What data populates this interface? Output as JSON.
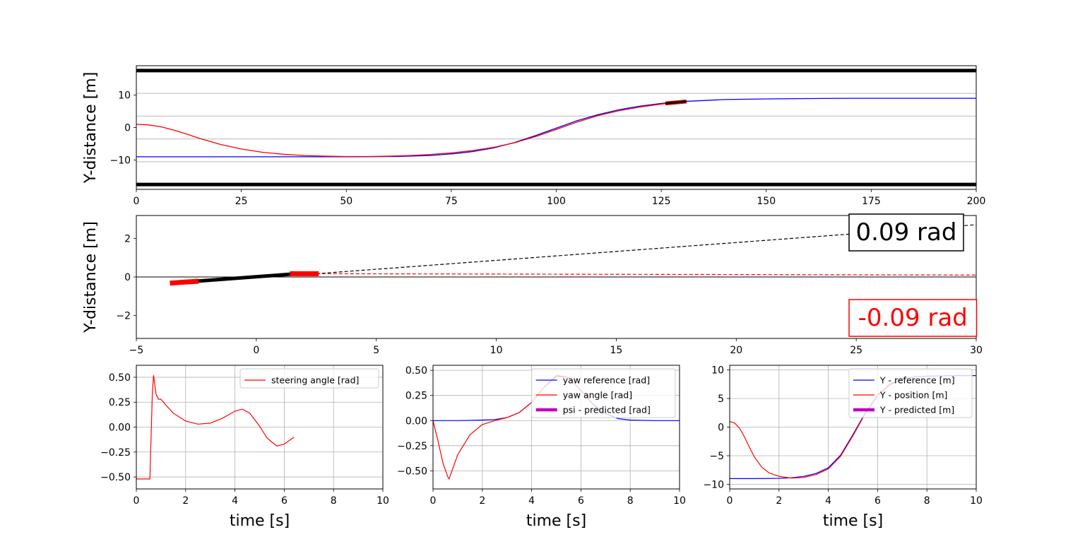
{
  "chart_data": [
    {
      "id": "road",
      "type": "line",
      "ylabel": "Y-distance [m]",
      "xlabel": "",
      "xlim": [
        0,
        200
      ],
      "ylim": [
        -19,
        19
      ],
      "xticks": [
        0,
        25,
        50,
        75,
        100,
        125,
        150,
        175,
        200
      ],
      "yticks": [
        -10,
        0,
        10
      ],
      "lane_lines": [
        {
          "y": 17.5,
          "style": "thick",
          "color": "#000000"
        },
        {
          "y": 10.5,
          "style": "thin",
          "color": "#c8c8c8"
        },
        {
          "y": 3.5,
          "style": "thin",
          "color": "#c8c8c8"
        },
        {
          "y": -3.5,
          "style": "thin",
          "color": "#c8c8c8"
        },
        {
          "y": -10.5,
          "style": "thin",
          "color": "#c8c8c8"
        },
        {
          "y": -17.5,
          "style": "thick",
          "color": "#000000"
        }
      ],
      "series": [
        {
          "color": "#0000ff",
          "x": [
            0,
            25,
            50,
            62,
            70,
            76,
            80,
            85,
            90,
            95,
            100,
            105,
            110,
            115,
            120,
            125,
            130,
            140,
            150,
            160,
            170,
            200
          ],
          "y": [
            -9,
            -9,
            -9,
            -8.9,
            -8.6,
            -8.0,
            -7.4,
            -6.3,
            -4.6,
            -2.5,
            -0.2,
            2.1,
            4.0,
            5.5,
            6.6,
            7.4,
            8.0,
            8.6,
            8.8,
            8.9,
            9,
            9
          ]
        },
        {
          "color": "#ff0000",
          "x": [
            0,
            3,
            6,
            9,
            12,
            15,
            20,
            25,
            30,
            35,
            40,
            45,
            50,
            55,
            60,
            65,
            70,
            75,
            80,
            85,
            90,
            95,
            100,
            105,
            110,
            115,
            120,
            125,
            130
          ],
          "y": [
            1,
            0.8,
            0.2,
            -0.8,
            -2.0,
            -3.3,
            -5.2,
            -6.6,
            -7.6,
            -8.2,
            -8.6,
            -8.8,
            -8.9,
            -8.9,
            -8.8,
            -8.6,
            -8.3,
            -7.8,
            -7.1,
            -6.1,
            -4.7,
            -2.8,
            -0.6,
            1.7,
            3.7,
            5.2,
            6.3,
            7.2,
            7.9
          ]
        }
      ],
      "vehicle": {
        "x": [
          126,
          131
        ],
        "y": [
          7.4,
          8.0
        ],
        "color": "#000000",
        "edge": "#ff0000"
      }
    },
    {
      "id": "zoom",
      "type": "line",
      "ylabel": "Y-distance [m]",
      "xlabel": "",
      "xlim": [
        -5,
        30
      ],
      "ylim": [
        -3.2,
        3.2
      ],
      "xticks": [
        -5,
        0,
        5,
        10,
        15,
        20,
        25,
        30
      ],
      "yticks": [
        -2,
        0,
        2
      ],
      "zero_line": true,
      "body": {
        "x": [
          -2.5,
          1.5
        ],
        "y": [
          -0.22,
          0.15
        ],
        "color": "#000000"
      },
      "rear_wheel": {
        "x": [
          -3.6,
          -2.4
        ],
        "y": [
          -0.32,
          -0.22
        ],
        "color": "#ff0000"
      },
      "front_wheel": {
        "x": [
          1.4,
          2.6
        ],
        "y": [
          0.17,
          0.17
        ],
        "color": "#ff0000"
      },
      "heading_line": {
        "x": [
          2.5,
          30
        ],
        "y": [
          0.17,
          2.72
        ],
        "color": "#000000",
        "dashed": true
      },
      "steer_line": {
        "x": [
          2.5,
          30
        ],
        "y": [
          0.17,
          0.1
        ],
        "color": "#ff0000",
        "dashed": true
      },
      "annotations": [
        {
          "text": "0.09 rad",
          "color": "#000000",
          "pos": "top-right"
        },
        {
          "text": "-0.09 rad",
          "color": "#ff0000",
          "pos": "bottom-right"
        }
      ]
    },
    {
      "id": "steer",
      "type": "line",
      "xlabel": "time [s]",
      "ylabel": "",
      "xlim": [
        0,
        10
      ],
      "ylim": [
        -0.62,
        0.62
      ],
      "xticks": [
        0,
        2,
        4,
        6,
        8,
        10
      ],
      "yticks": [
        -0.5,
        -0.25,
        0.0,
        0.25,
        0.5
      ],
      "ytick_labels": [
        "−0.50",
        "−0.25",
        "0.00",
        "0.25",
        "0.50"
      ],
      "grid": true,
      "legend": "top-right",
      "series": [
        {
          "name": "steering angle [rad]",
          "color": "#ff0000",
          "width": 1.2,
          "x": [
            0,
            0.55,
            0.6,
            0.65,
            0.7,
            0.8,
            0.9,
            1.0,
            1.2,
            1.5,
            2.0,
            2.5,
            3.0,
            3.5,
            4.0,
            4.3,
            4.6,
            5.0,
            5.3,
            5.7,
            6.0,
            6.4
          ],
          "y": [
            -0.52,
            -0.52,
            -0.1,
            0.35,
            0.52,
            0.33,
            0.28,
            0.28,
            0.22,
            0.14,
            0.06,
            0.03,
            0.04,
            0.09,
            0.16,
            0.18,
            0.14,
            0.01,
            -0.11,
            -0.19,
            -0.17,
            -0.1
          ]
        }
      ]
    },
    {
      "id": "yaw",
      "type": "line",
      "xlabel": "time [s]",
      "ylabel": "",
      "xlim": [
        0,
        10
      ],
      "ylim": [
        -0.68,
        0.55
      ],
      "xticks": [
        0,
        2,
        4,
        6,
        8,
        10
      ],
      "yticks": [
        -0.5,
        -0.25,
        0.0,
        0.25,
        0.5
      ],
      "ytick_labels": [
        "−0.50",
        "−0.25",
        "0.00",
        "0.25",
        "0.50"
      ],
      "grid": true,
      "legend": "top-right",
      "series": [
        {
          "name": "yaw reference [rad]",
          "color": "#0000ff",
          "width": 1.2,
          "x": [
            0,
            1,
            2,
            2.5,
            3,
            3.5,
            4,
            4.5,
            5,
            5.5,
            6,
            6.5,
            7,
            7.5,
            8,
            9,
            10
          ],
          "y": [
            0,
            0,
            0.005,
            0.01,
            0.03,
            0.08,
            0.18,
            0.33,
            0.44,
            0.43,
            0.3,
            0.16,
            0.07,
            0.02,
            0.005,
            0,
            0
          ]
        },
        {
          "name": "yaw angle [rad]",
          "color": "#ff0000",
          "width": 1.2,
          "x": [
            0,
            0.2,
            0.4,
            0.6,
            0.65,
            0.8,
            1.0,
            1.5,
            2.0,
            2.5,
            3.0,
            3.5,
            4.0,
            4.5,
            5.0,
            5.5,
            6.0,
            6.5,
            6.9
          ],
          "y": [
            0,
            -0.2,
            -0.42,
            -0.56,
            -0.58,
            -0.48,
            -0.34,
            -0.14,
            -0.04,
            0.0,
            0.03,
            0.08,
            0.18,
            0.33,
            0.45,
            0.43,
            0.3,
            0.16,
            0.06
          ]
        },
        {
          "name": "psi - predicted [rad]",
          "color": "#bf00bf",
          "width": 4.5,
          "x": [],
          "y": []
        }
      ]
    },
    {
      "id": "ypos",
      "type": "line",
      "xlabel": "time [s]",
      "ylabel": "",
      "xlim": [
        0,
        10
      ],
      "ylim": [
        -10.8,
        10.8
      ],
      "xticks": [
        0,
        2,
        4,
        6,
        8,
        10
      ],
      "yticks": [
        -10,
        -5,
        0,
        5,
        10
      ],
      "ytick_labels": [
        "−10",
        "−5",
        "0",
        "5",
        "10"
      ],
      "grid": true,
      "legend": "top-right",
      "series": [
        {
          "name": "Y - reference [m]",
          "color": "#0000ff",
          "width": 1.2,
          "x": [
            0,
            1,
            2,
            2.5,
            3,
            3.5,
            4,
            4.5,
            5,
            5.5,
            6,
            6.5,
            7,
            7.5,
            8,
            9,
            10
          ],
          "y": [
            -9,
            -9,
            -8.95,
            -8.85,
            -8.6,
            -8.1,
            -7.1,
            -4.9,
            -1.3,
            2.5,
            5.6,
            7.5,
            8.4,
            8.8,
            8.9,
            9,
            9
          ]
        },
        {
          "name": "Y - position [m]",
          "color": "#ff0000",
          "width": 1.2,
          "x": [
            0,
            0.2,
            0.4,
            0.6,
            0.8,
            1.0,
            1.3,
            1.6,
            2.0,
            2.5,
            3.0,
            3.5,
            4.0,
            4.5,
            5.0,
            5.5,
            6.0,
            6.5,
            7.0
          ],
          "y": [
            1,
            0.7,
            -0.2,
            -1.7,
            -3.5,
            -5.2,
            -7.0,
            -8.0,
            -8.6,
            -8.9,
            -8.8,
            -8.3,
            -7.3,
            -5.1,
            -1.5,
            2.4,
            5.5,
            7.4,
            8.3
          ]
        },
        {
          "name": "Y - predicted [m]",
          "color": "#bf00bf",
          "width": 4.5,
          "x": [],
          "y": []
        }
      ]
    }
  ]
}
